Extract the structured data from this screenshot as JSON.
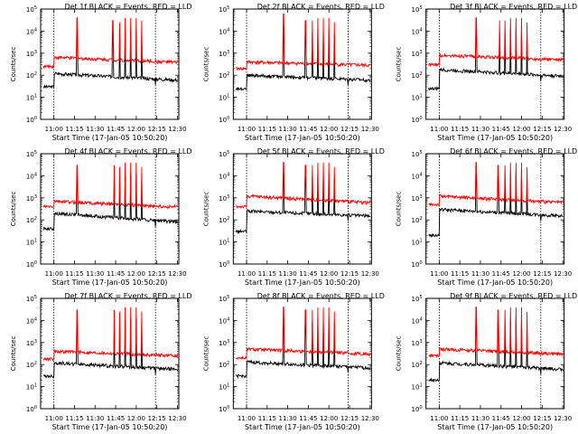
{
  "figure": {
    "panel_count": 9,
    "colors": {
      "events": "#000000",
      "lld": "#ff0000",
      "axes": "#000000",
      "background": "#ffffff"
    }
  },
  "chart_data": [
    {
      "type": "line",
      "title": "Det  1f BLACK = Events, RED = LLD",
      "xlabel": "Start Time (17-Jan-05 10:50:20)",
      "ylabel": "Counts/sec",
      "y_scale": "log",
      "ylim": [
        1,
        100000
      ],
      "xlim": [
        "10:50:20",
        "12:31:00"
      ],
      "x_ticks": [
        "11:00",
        "11:15",
        "11:30",
        "11:45",
        "12:00",
        "12:15",
        "12:30"
      ],
      "y_ticks": [
        "10^0",
        "10^1",
        "10^2",
        "10^3",
        "10^4",
        "10^5"
      ],
      "grid": false,
      "series": [
        {
          "name": "Events",
          "color": "#000000",
          "start": 120,
          "end": 60,
          "pre": 30
        },
        {
          "name": "LLD",
          "color": "#ff0000",
          "start": 650,
          "end": 380,
          "pre": 250
        }
      ],
      "spikes": [
        {
          "time": "11:17",
          "peak": 40000
        },
        {
          "time": "11:43",
          "peak": 30000
        },
        {
          "time": "11:48",
          "peak": 25000
        },
        {
          "time": "11:52",
          "peak": 40000
        },
        {
          "time": "11:56",
          "peak": 40000
        },
        {
          "time": "12:00",
          "peak": 40000
        },
        {
          "time": "12:04",
          "peak": 30000
        }
      ],
      "vlines": [
        "11:00",
        "12:14"
      ]
    },
    {
      "type": "line",
      "title": "Det  2f BLACK = Events, RED = LLD",
      "xlabel": "Start Time (17-Jan-05 10:50:20)",
      "ylabel": "Counts/sec",
      "y_scale": "log",
      "ylim": [
        1,
        100000
      ],
      "xlim": [
        "10:50:20",
        "12:31:00"
      ],
      "x_ticks": [
        "11:00",
        "11:15",
        "11:30",
        "11:45",
        "12:00",
        "12:15",
        "12:30"
      ],
      "y_ticks": [
        "10^0",
        "10^1",
        "10^2",
        "10^3",
        "10^4",
        "10^5"
      ],
      "grid": false,
      "series": [
        {
          "name": "Events",
          "color": "#000000",
          "start": 100,
          "end": 60,
          "pre": 25
        },
        {
          "name": "LLD",
          "color": "#ff0000",
          "start": 400,
          "end": 280,
          "pre": 200
        }
      ],
      "spikes": [
        {
          "time": "11:27",
          "peak": 60000
        },
        {
          "time": "11:43",
          "peak": 30000
        },
        {
          "time": "11:48",
          "peak": 30000
        },
        {
          "time": "11:52",
          "peak": 40000
        },
        {
          "time": "11:56",
          "peak": 40000
        },
        {
          "time": "12:00",
          "peak": 40000
        },
        {
          "time": "12:04",
          "peak": 25000
        }
      ],
      "vlines": [
        "11:00",
        "12:14"
      ]
    },
    {
      "type": "line",
      "title": "Det  3f BLACK = Events, RED = LLD",
      "xlabel": "Start Time (17-Jan-05 10:50:20)",
      "ylabel": "Counts/sec",
      "y_scale": "log",
      "ylim": [
        1,
        100000
      ],
      "xlim": [
        "10:50:20",
        "12:31:00"
      ],
      "x_ticks": [
        "11:00",
        "11:15",
        "11:30",
        "11:45",
        "12:00",
        "12:15",
        "12:30"
      ],
      "y_ticks": [
        "10^0",
        "10^1",
        "10^2",
        "10^3",
        "10^4",
        "10^5"
      ],
      "grid": false,
      "series": [
        {
          "name": "Events",
          "color": "#000000",
          "start": 180,
          "end": 90,
          "pre": 25
        },
        {
          "name": "LLD",
          "color": "#ff0000",
          "start": 800,
          "end": 500,
          "pre": 300
        }
      ],
      "spikes": [
        {
          "time": "11:27",
          "peak": 40000
        },
        {
          "time": "11:44",
          "peak": 30000
        },
        {
          "time": "11:48",
          "peak": 30000
        },
        {
          "time": "11:52",
          "peak": 40000
        },
        {
          "time": "11:56",
          "peak": 40000
        },
        {
          "time": "12:00",
          "peak": 40000
        },
        {
          "time": "12:04",
          "peak": 25000
        }
      ],
      "vlines": [
        "11:00",
        "12:14"
      ]
    },
    {
      "type": "line",
      "title": "Det  4f BLACK = Events, RED = LLD",
      "xlabel": "Start Time (17-Jan-05 10:50:20)",
      "ylabel": "Counts/sec",
      "y_scale": "log",
      "ylim": [
        1,
        100000
      ],
      "xlim": [
        "10:50:20",
        "12:31:00"
      ],
      "x_ticks": [
        "11:00",
        "11:15",
        "11:30",
        "11:45",
        "12:00",
        "12:15",
        "12:30"
      ],
      "y_ticks": [
        "10^0",
        "10^1",
        "10^2",
        "10^3",
        "10^4",
        "10^5"
      ],
      "grid": false,
      "series": [
        {
          "name": "Events",
          "color": "#000000",
          "start": 200,
          "end": 80,
          "pre": 40
        },
        {
          "name": "LLD",
          "color": "#ff0000",
          "start": 700,
          "end": 380,
          "pre": 400
        }
      ],
      "spikes": [
        {
          "time": "11:17",
          "peak": 30000
        },
        {
          "time": "11:44",
          "peak": 30000
        },
        {
          "time": "11:48",
          "peak": 25000
        },
        {
          "time": "11:52",
          "peak": 40000
        },
        {
          "time": "11:56",
          "peak": 40000
        },
        {
          "time": "12:00",
          "peak": 40000
        },
        {
          "time": "12:04",
          "peak": 25000
        }
      ],
      "vlines": [
        "11:00",
        "12:14"
      ]
    },
    {
      "type": "line",
      "title": "Det  5f BLACK = Events, RED = LLD",
      "xlabel": "Start Time (17-Jan-05 10:50:20)",
      "ylabel": "Counts/sec",
      "y_scale": "log",
      "ylim": [
        1,
        100000
      ],
      "xlim": [
        "10:50:20",
        "12:31:00"
      ],
      "x_ticks": [
        "11:00",
        "11:15",
        "11:30",
        "11:45",
        "12:00",
        "12:15",
        "12:30"
      ],
      "y_ticks": [
        "10^0",
        "10^1",
        "10^2",
        "10^3",
        "10^4",
        "10^5"
      ],
      "grid": false,
      "series": [
        {
          "name": "Events",
          "color": "#000000",
          "start": 250,
          "end": 150,
          "pre": 30
        },
        {
          "name": "LLD",
          "color": "#ff0000",
          "start": 1200,
          "end": 600,
          "pre": 400
        }
      ],
      "spikes": [
        {
          "time": "11:27",
          "peak": 40000
        },
        {
          "time": "11:43",
          "peak": 30000
        },
        {
          "time": "11:48",
          "peak": 30000
        },
        {
          "time": "11:52",
          "peak": 40000
        },
        {
          "time": "11:56",
          "peak": 40000
        },
        {
          "time": "12:00",
          "peak": 40000
        },
        {
          "time": "12:04",
          "peak": 25000
        }
      ],
      "vlines": [
        "11:00",
        "12:14"
      ]
    },
    {
      "type": "line",
      "title": "Det  6f BLACK = Events, RED = LLD",
      "xlabel": "Start Time (17-Jan-05 10:50:20)",
      "ylabel": "Counts/sec",
      "y_scale": "log",
      "ylim": [
        1,
        100000
      ],
      "xlim": [
        "10:50:20",
        "12:31:00"
      ],
      "x_ticks": [
        "11:00",
        "11:15",
        "11:30",
        "11:45",
        "12:00",
        "12:15",
        "12:30"
      ],
      "y_ticks": [
        "10^0",
        "10^1",
        "10^2",
        "10^3",
        "10^4",
        "10^5"
      ],
      "grid": false,
      "series": [
        {
          "name": "Events",
          "color": "#000000",
          "start": 300,
          "end": 150,
          "pre": 20
        },
        {
          "name": "LLD",
          "color": "#ff0000",
          "start": 1200,
          "end": 600,
          "pre": 500
        }
      ],
      "spikes": [
        {
          "time": "11:27",
          "peak": 40000
        },
        {
          "time": "11:43",
          "peak": 30000
        },
        {
          "time": "11:48",
          "peak": 30000
        },
        {
          "time": "11:52",
          "peak": 40000
        },
        {
          "time": "11:56",
          "peak": 40000
        },
        {
          "time": "12:00",
          "peak": 40000
        },
        {
          "time": "12:04",
          "peak": 25000
        }
      ],
      "vlines": [
        "11:00",
        "12:14"
      ]
    },
    {
      "type": "line",
      "title": "Det  7f BLACK = Events, RED = LLD",
      "xlabel": "Start Time (17-Jan-05 10:50:20)",
      "ylabel": "Counts/sec",
      "y_scale": "log",
      "ylim": [
        1,
        100000
      ],
      "xlim": [
        "10:50:20",
        "12:31:00"
      ],
      "x_ticks": [
        "11:00",
        "11:15",
        "11:30",
        "11:45",
        "12:00",
        "12:15",
        "12:30"
      ],
      "y_ticks": [
        "10^0",
        "10^1",
        "10^2",
        "10^3",
        "10^4",
        "10^5"
      ],
      "grid": false,
      "series": [
        {
          "name": "Events",
          "color": "#000000",
          "start": 120,
          "end": 60,
          "pre": 30
        },
        {
          "name": "LLD",
          "color": "#ff0000",
          "start": 400,
          "end": 250,
          "pre": 180
        }
      ],
      "spikes": [
        {
          "time": "11:17",
          "peak": 30000
        },
        {
          "time": "11:44",
          "peak": 30000
        },
        {
          "time": "11:48",
          "peak": 25000
        },
        {
          "time": "11:52",
          "peak": 40000
        },
        {
          "time": "11:56",
          "peak": 40000
        },
        {
          "time": "12:00",
          "peak": 40000
        },
        {
          "time": "12:04",
          "peak": 25000
        }
      ],
      "vlines": [
        "11:00",
        "12:14"
      ]
    },
    {
      "type": "line",
      "title": "Det  8f BLACK = Events, RED = LLD",
      "xlabel": "Start Time (17-Jan-05 10:50:20)",
      "ylabel": "Counts/sec",
      "y_scale": "log",
      "ylim": [
        1,
        100000
      ],
      "xlim": [
        "10:50:20",
        "12:31:00"
      ],
      "x_ticks": [
        "11:00",
        "11:15",
        "11:30",
        "11:45",
        "12:00",
        "12:15",
        "12:30"
      ],
      "y_ticks": [
        "10^0",
        "10^1",
        "10^2",
        "10^3",
        "10^4",
        "10^5"
      ],
      "grid": false,
      "series": [
        {
          "name": "Events",
          "color": "#000000",
          "start": 130,
          "end": 70,
          "pre": 30
        },
        {
          "name": "LLD",
          "color": "#ff0000",
          "start": 500,
          "end": 300,
          "pre": 200
        }
      ],
      "spikes": [
        {
          "time": "11:27",
          "peak": 40000
        },
        {
          "time": "11:43",
          "peak": 30000
        },
        {
          "time": "11:48",
          "peak": 30000
        },
        {
          "time": "11:52",
          "peak": 40000
        },
        {
          "time": "11:56",
          "peak": 40000
        },
        {
          "time": "12:00",
          "peak": 40000
        },
        {
          "time": "12:04",
          "peak": 25000
        }
      ],
      "vlines": [
        "11:00",
        "12:14"
      ]
    },
    {
      "type": "line",
      "title": "Det  9f BLACK = Events, RED = LLD",
      "xlabel": "Start Time (17-Jan-05 10:50:20)",
      "ylabel": "Counts/sec",
      "y_scale": "log",
      "ylim": [
        1,
        100000
      ],
      "xlim": [
        "10:50:20",
        "12:31:00"
      ],
      "x_ticks": [
        "11:00",
        "11:15",
        "11:30",
        "11:45",
        "12:00",
        "12:15",
        "12:30"
      ],
      "y_ticks": [
        "10^0",
        "10^1",
        "10^2",
        "10^3",
        "10^4",
        "10^5"
      ],
      "grid": false,
      "series": [
        {
          "name": "Events",
          "color": "#000000",
          "start": 120,
          "end": 60,
          "pre": 20
        },
        {
          "name": "LLD",
          "color": "#ff0000",
          "start": 500,
          "end": 300,
          "pre": 250
        }
      ],
      "spikes": [
        {
          "time": "11:27",
          "peak": 40000
        },
        {
          "time": "11:43",
          "peak": 30000
        },
        {
          "time": "11:48",
          "peak": 30000
        },
        {
          "time": "11:52",
          "peak": 40000
        },
        {
          "time": "11:56",
          "peak": 40000
        },
        {
          "time": "12:00",
          "peak": 40000
        },
        {
          "time": "12:04",
          "peak": 25000
        }
      ],
      "vlines": [
        "11:00",
        "12:14"
      ]
    }
  ]
}
